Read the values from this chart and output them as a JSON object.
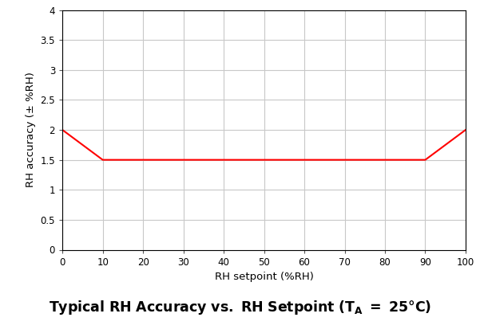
{
  "x": [
    0,
    10,
    10,
    90,
    90,
    100
  ],
  "y": [
    2.0,
    1.5,
    1.5,
    1.5,
    1.5,
    2.0
  ],
  "line_color": "#ff0000",
  "line_width": 1.5,
  "xlim": [
    0,
    100
  ],
  "ylim": [
    0,
    4
  ],
  "xticks": [
    0,
    10,
    20,
    30,
    40,
    50,
    60,
    70,
    80,
    90,
    100
  ],
  "yticks": [
    0,
    0.5,
    1.0,
    1.5,
    2.0,
    2.5,
    3.0,
    3.5,
    4.0
  ],
  "xlabel": "RH setpoint (%RH)",
  "ylabel": "RH accuracy (± %RH)",
  "background_color": "#ffffff",
  "grid_color": "#c8c8c8",
  "tick_label_fontsize": 8.5,
  "axis_label_fontsize": 9.5,
  "title_fontsize": 12.5
}
